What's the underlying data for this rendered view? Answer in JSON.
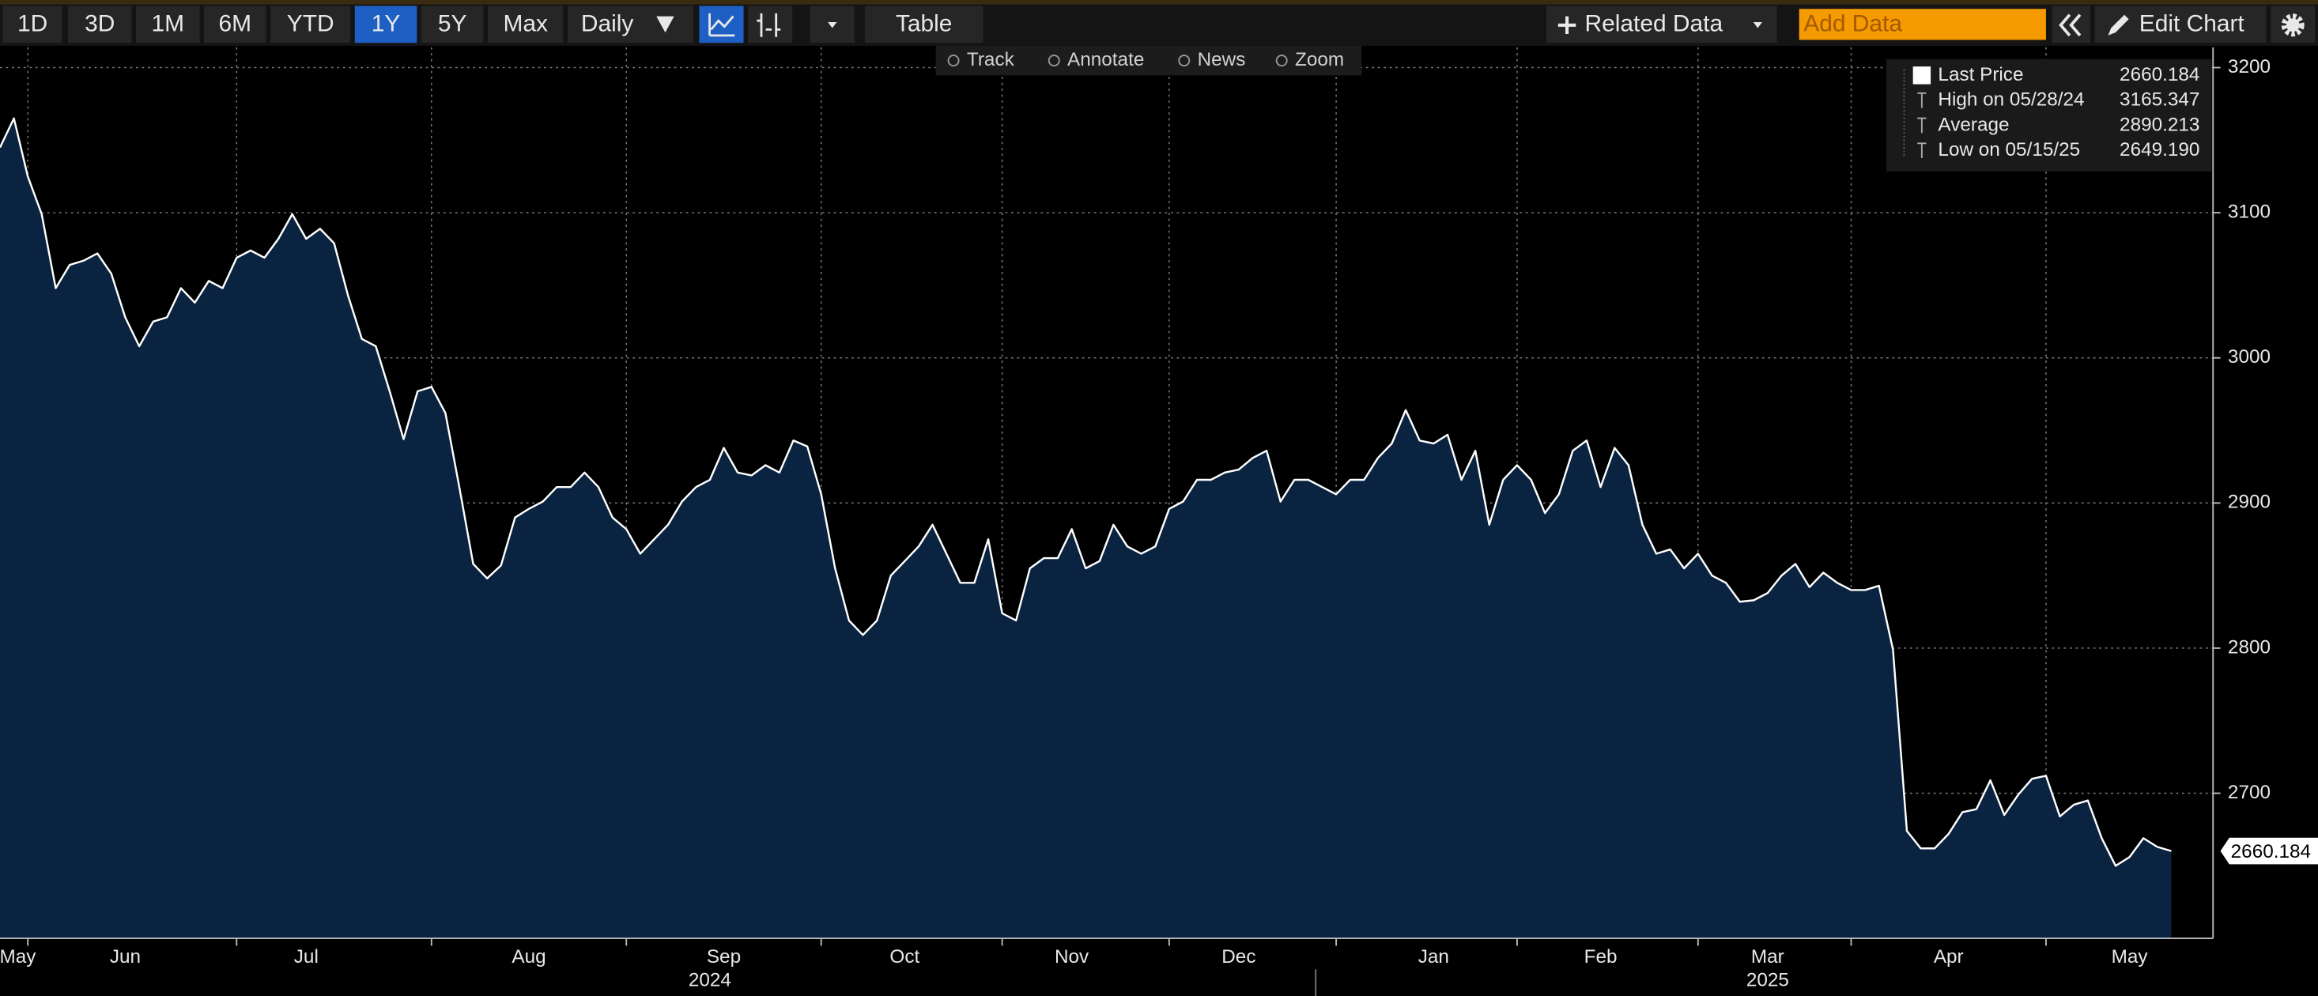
{
  "toolbar": {
    "ranges": [
      "1D",
      "3D",
      "1M",
      "6M",
      "YTD",
      "1Y",
      "5Y",
      "Max"
    ],
    "active": "1Y",
    "frequency": "Daily",
    "table": "Table",
    "related": "Related Data",
    "add_data": "Add Data",
    "edit": "Edit Chart"
  },
  "chart_tools": [
    "Track",
    "Annotate",
    "News",
    "Zoom"
  ],
  "chart_data": {
    "type": "area",
    "series": [
      {
        "name": "Last Price",
        "color": "#ffffff",
        "fill": "#0a2340",
        "values": [
          3145,
          3165,
          3125,
          3099,
          3048,
          3064,
          3067,
          3072,
          3058,
          3028,
          3008,
          3025,
          3028,
          3048,
          3038,
          3053,
          3048,
          3069,
          3074,
          3069,
          3082,
          3099,
          3082,
          3089,
          3079,
          3043,
          3013,
          3008,
          2977,
          2944,
          2977,
          2980,
          2962,
          2911,
          2858,
          2848,
          2857,
          2890,
          2896,
          2901,
          2911,
          2911,
          2921,
          2911,
          2890,
          2882,
          2865,
          2875,
          2885,
          2901,
          2911,
          2916,
          2938,
          2921,
          2919,
          2926,
          2921,
          2943,
          2939,
          2906,
          2855,
          2819,
          2809,
          2819,
          2850,
          2860,
          2870,
          2885,
          2865,
          2845,
          2845,
          2875,
          2824,
          2819,
          2855,
          2862,
          2862,
          2882,
          2855,
          2860,
          2885,
          2870,
          2865,
          2870,
          2896,
          2901,
          2916,
          2916,
          2921,
          2923,
          2931,
          2936,
          2901,
          2916,
          2916,
          2911,
          2906,
          2916,
          2916,
          2931,
          2941,
          2964,
          2943,
          2941,
          2947,
          2916,
          2936,
          2885,
          2916,
          2926,
          2916,
          2893,
          2906,
          2936,
          2943,
          2911,
          2938,
          2926,
          2885,
          2865,
          2868,
          2855,
          2865,
          2850,
          2845,
          2832,
          2833,
          2838,
          2850,
          2858,
          2842,
          2852,
          2845,
          2840,
          2840,
          2843,
          2799,
          2674,
          2662,
          2662,
          2672,
          2687,
          2689,
          2709,
          2685,
          2699,
          2710,
          2712,
          2684,
          2692,
          2695,
          2669,
          2650,
          2656,
          2669,
          2663,
          2660.184
        ]
      }
    ],
    "xlim": [
      0,
      159
    ],
    "xticks": [
      {
        "value": 1,
        "label": "May"
      },
      {
        "value": 9,
        "label": "Jun"
      },
      {
        "value": 22,
        "label": "Jul"
      },
      {
        "value": 38,
        "label": "Aug"
      },
      {
        "value": 52,
        "label": "Sep"
      },
      {
        "value": 65,
        "label": "Oct"
      },
      {
        "value": 77,
        "label": "Nov"
      },
      {
        "value": 89,
        "label": "Dec"
      },
      {
        "value": 103,
        "label": "Jan"
      },
      {
        "value": 115,
        "label": "Feb"
      },
      {
        "value": 127,
        "label": "Mar"
      },
      {
        "value": 140,
        "label": "Apr"
      },
      {
        "value": 153,
        "label": "May"
      }
    ],
    "xgrid": [
      2,
      17,
      31,
      45,
      59,
      72,
      84,
      96,
      109,
      122,
      133,
      147
    ],
    "x_group_labels": [
      {
        "value": 51,
        "label": "2024"
      },
      {
        "value": 127,
        "label": "2025"
      }
    ],
    "ylim": [
      2600,
      3214
    ],
    "yticks": [
      2700,
      2800,
      2900,
      3000,
      3100,
      3200
    ],
    "grid": true,
    "legend": {
      "position": "top-right",
      "stats": [
        {
          "value": 2660.184
        },
        {
          "label": "High on 05/28/24",
          "value": 3165.347
        },
        {
          "label": "Average",
          "value": 2890.213
        },
        {
          "label": "Low on 05/15/25",
          "value": 2649.19,
          "value_label": "2649.190"
        }
      ]
    }
  }
}
